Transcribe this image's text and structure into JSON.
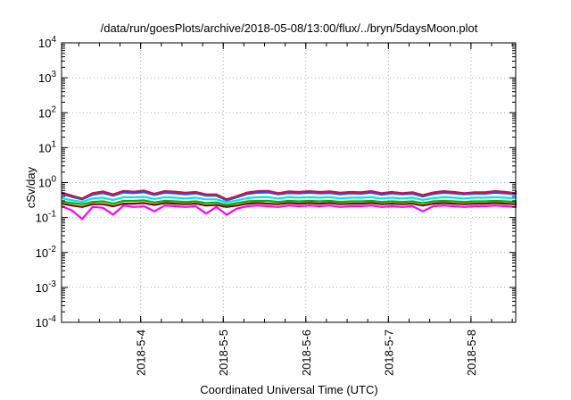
{
  "chart_data": {
    "type": "line",
    "title": "/data/run/goesPlots/archive/2018-05-08/13:00/flux/../bryn/5daysMoon.plot",
    "xlabel": "Coordinated Universal Time (UTC)",
    "ylabel": "cSv/day",
    "yscale": "log",
    "ylim": [
      0.0001,
      10000
    ],
    "y_ticks": [
      {
        "value": 0.0001,
        "base": "10",
        "exp": "-4"
      },
      {
        "value": 0.001,
        "base": "10",
        "exp": "-3"
      },
      {
        "value": 0.01,
        "base": "10",
        "exp": "-2"
      },
      {
        "value": 0.1,
        "base": "10",
        "exp": "-1"
      },
      {
        "value": 1,
        "base": "10",
        "exp": "0"
      },
      {
        "value": 10,
        "base": "10",
        "exp": "1"
      },
      {
        "value": 100,
        "base": "10",
        "exp": "2"
      },
      {
        "value": 1000,
        "base": "10",
        "exp": "3"
      },
      {
        "value": 10000,
        "base": "10",
        "exp": "4"
      }
    ],
    "xlim": [
      "2018-05-03 01:00",
      "2018-05-08 13:00"
    ],
    "x_ticks": [
      {
        "value": "2018-05-04",
        "label": "2018-5-4"
      },
      {
        "value": "2018-05-05",
        "label": "2018-5-5"
      },
      {
        "value": "2018-05-06",
        "label": "2018-5-6"
      },
      {
        "value": "2018-05-07",
        "label": "2018-5-7"
      },
      {
        "value": "2018-05-08",
        "label": "2018-5-8"
      }
    ],
    "grid": true,
    "series": [
      {
        "color": "#ff00ff",
        "x_start": "2018-05-03 01:00",
        "x_step_hours": 3,
        "values": [
          0.21,
          0.16,
          0.09,
          0.2,
          0.19,
          0.12,
          0.22,
          0.2,
          0.21,
          0.15,
          0.22,
          0.21,
          0.2,
          0.21,
          0.13,
          0.2,
          0.12,
          0.18,
          0.21,
          0.22,
          0.21,
          0.2,
          0.22,
          0.21,
          0.22,
          0.21,
          0.22,
          0.2,
          0.21,
          0.21,
          0.22,
          0.2,
          0.21,
          0.2,
          0.21,
          0.15,
          0.21,
          0.22,
          0.21,
          0.2,
          0.21,
          0.21,
          0.22,
          0.21,
          0.2,
          0.21,
          0.21,
          0.22,
          0.21,
          0.2
        ]
      },
      {
        "color": "#8b0000",
        "x_start": "2018-05-03 01:00",
        "x_step_hours": 3,
        "values": [
          0.25,
          0.22,
          0.2,
          0.24,
          0.24,
          0.21,
          0.25,
          0.25,
          0.26,
          0.23,
          0.26,
          0.25,
          0.24,
          0.25,
          0.22,
          0.23,
          0.2,
          0.22,
          0.25,
          0.26,
          0.25,
          0.24,
          0.26,
          0.25,
          0.26,
          0.25,
          0.26,
          0.24,
          0.25,
          0.25,
          0.26,
          0.24,
          0.25,
          0.24,
          0.25,
          0.22,
          0.25,
          0.26,
          0.25,
          0.24,
          0.25,
          0.25,
          0.26,
          0.25,
          0.24,
          0.25,
          0.25,
          0.26,
          0.25,
          0.24
        ]
      },
      {
        "color": "#00b000",
        "x_start": "2018-05-03 01:00",
        "x_step_hours": 3,
        "values": [
          0.29,
          0.26,
          0.24,
          0.28,
          0.29,
          0.25,
          0.3,
          0.3,
          0.31,
          0.27,
          0.3,
          0.29,
          0.28,
          0.29,
          0.26,
          0.27,
          0.23,
          0.26,
          0.29,
          0.3,
          0.3,
          0.28,
          0.3,
          0.29,
          0.3,
          0.29,
          0.3,
          0.28,
          0.29,
          0.29,
          0.3,
          0.28,
          0.29,
          0.28,
          0.29,
          0.26,
          0.29,
          0.3,
          0.29,
          0.28,
          0.29,
          0.29,
          0.3,
          0.29,
          0.28,
          0.29,
          0.29,
          0.3,
          0.29,
          0.28
        ]
      },
      {
        "color": "#00e5e5",
        "x_start": "2018-05-03 01:00",
        "x_step_hours": 3,
        "values": [
          0.36,
          0.31,
          0.28,
          0.35,
          0.37,
          0.32,
          0.38,
          0.38,
          0.39,
          0.34,
          0.38,
          0.37,
          0.35,
          0.37,
          0.33,
          0.33,
          0.27,
          0.31,
          0.36,
          0.38,
          0.38,
          0.35,
          0.38,
          0.37,
          0.38,
          0.37,
          0.38,
          0.35,
          0.37,
          0.37,
          0.38,
          0.35,
          0.37,
          0.35,
          0.37,
          0.32,
          0.36,
          0.38,
          0.37,
          0.35,
          0.37,
          0.37,
          0.38,
          0.37,
          0.35,
          0.37,
          0.36,
          0.38,
          0.37,
          0.35
        ]
      },
      {
        "color": "#1e55ff",
        "x_start": "2018-05-03 01:00",
        "x_step_hours": 3,
        "values": [
          0.47,
          0.39,
          0.33,
          0.45,
          0.5,
          0.42,
          0.52,
          0.5,
          0.53,
          0.44,
          0.51,
          0.49,
          0.46,
          0.49,
          0.42,
          0.42,
          0.31,
          0.38,
          0.47,
          0.51,
          0.52,
          0.46,
          0.5,
          0.49,
          0.51,
          0.49,
          0.5,
          0.46,
          0.49,
          0.48,
          0.51,
          0.45,
          0.49,
          0.46,
          0.48,
          0.4,
          0.47,
          0.51,
          0.49,
          0.46,
          0.48,
          0.48,
          0.51,
          0.49,
          0.46,
          0.48,
          0.47,
          0.51,
          0.49,
          0.45
        ]
      },
      {
        "color": "#d01040",
        "x_start": "2018-05-03 01:00",
        "x_step_hours": 3,
        "values": [
          0.52,
          0.42,
          0.35,
          0.5,
          0.56,
          0.46,
          0.58,
          0.55,
          0.59,
          0.48,
          0.57,
          0.55,
          0.51,
          0.54,
          0.46,
          0.46,
          0.33,
          0.41,
          0.52,
          0.57,
          0.58,
          0.5,
          0.56,
          0.54,
          0.57,
          0.54,
          0.56,
          0.51,
          0.54,
          0.53,
          0.57,
          0.5,
          0.54,
          0.5,
          0.53,
          0.44,
          0.52,
          0.57,
          0.54,
          0.5,
          0.53,
          0.53,
          0.57,
          0.54,
          0.5,
          0.53,
          0.52,
          0.57,
          0.54,
          0.5
        ]
      }
    ]
  }
}
